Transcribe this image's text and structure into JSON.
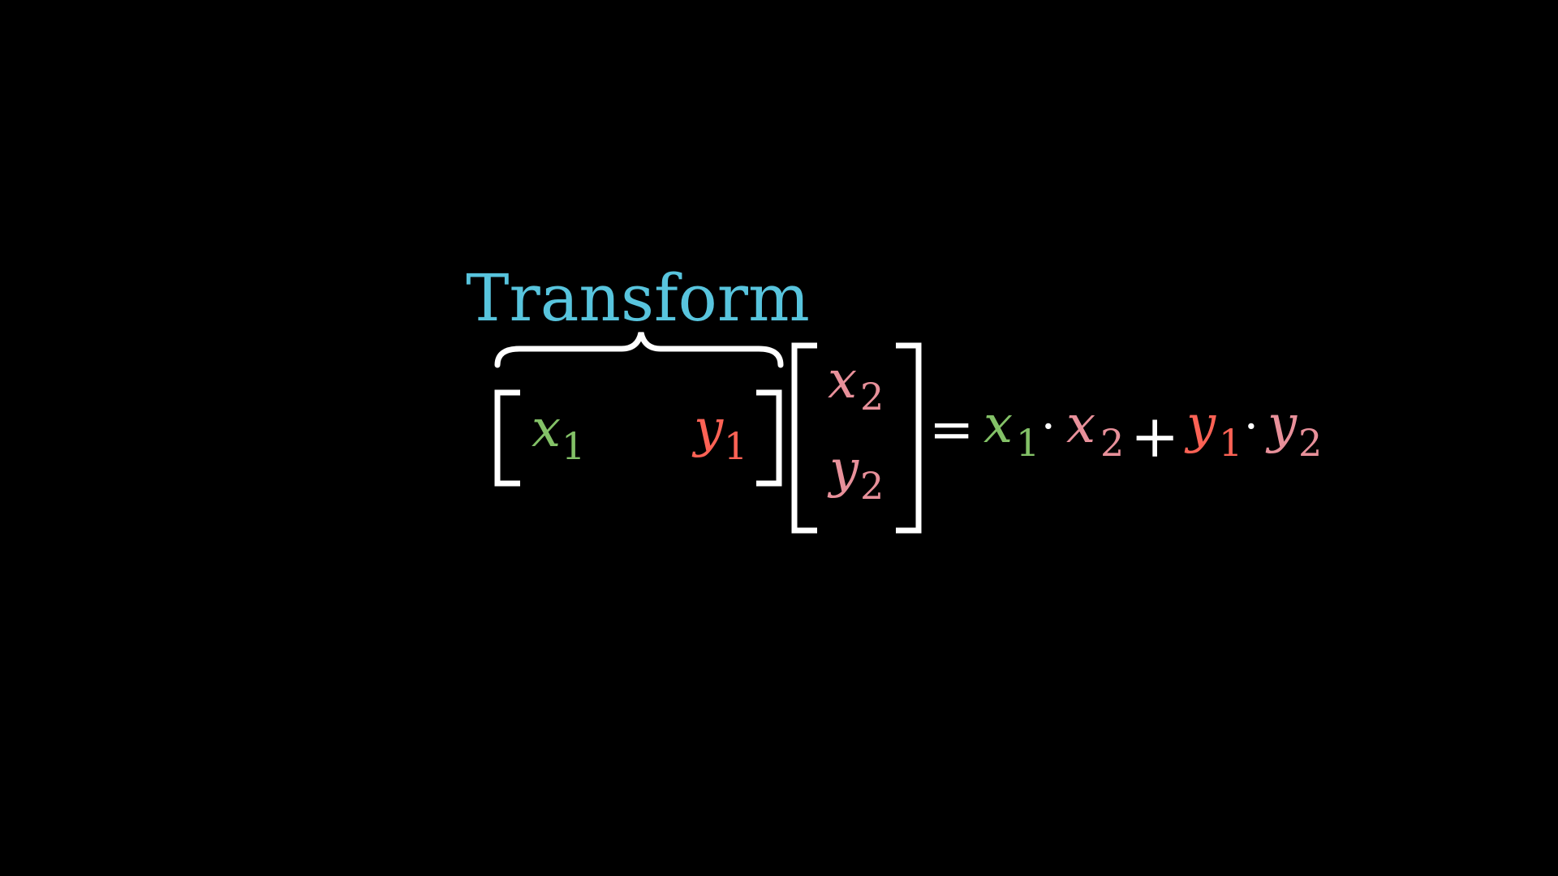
{
  "annotation": {
    "label": "Transform"
  },
  "row_vector": {
    "entries": [
      {
        "var": "x",
        "sub": "1"
      },
      {
        "var": "y",
        "sub": "1"
      }
    ]
  },
  "column_vector": {
    "entries": [
      {
        "var": "x",
        "sub": "2"
      },
      {
        "var": "y",
        "sub": "2"
      }
    ]
  },
  "result": {
    "equals": "=",
    "dot": "·",
    "plus": "+",
    "terms": [
      {
        "var": "x",
        "sub": "1"
      },
      {
        "var": "x",
        "sub": "2"
      },
      {
        "var": "y",
        "sub": "1"
      },
      {
        "var": "y",
        "sub": "2"
      }
    ]
  },
  "colors": {
    "background": "#000000",
    "foreground": "#FFFFFF",
    "label": "#58C4DD",
    "x1": "#83C167",
    "y1": "#FC6255",
    "x2": "#E8909A",
    "y2": "#E8909A"
  }
}
